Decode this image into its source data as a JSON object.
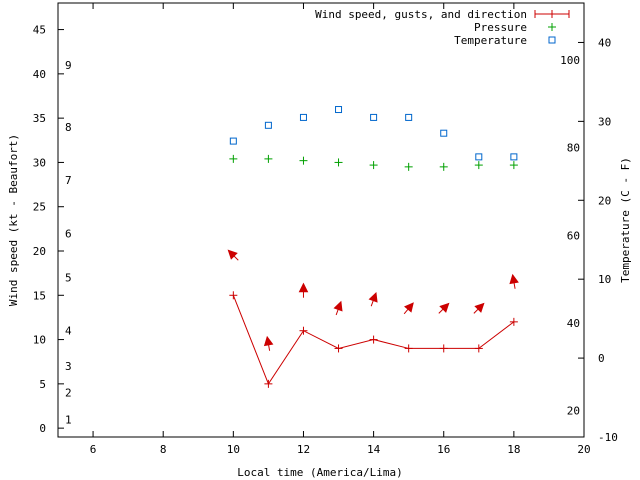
{
  "chart_data": {
    "type": "line",
    "xlabel": "Local time (America/Lima)",
    "ylabel_left": "Wind speed (kt - Beaufort)",
    "ylabel_right": "Temperature (C - F)",
    "xlim": [
      5,
      20
    ],
    "xticks": [
      "6",
      "8",
      "10",
      "12",
      "14",
      "16",
      "18",
      "20"
    ],
    "ylim_left": [
      -1,
      48
    ],
    "yticks_left": [
      "0",
      "5",
      "10",
      "15",
      "20",
      "25",
      "30",
      "35",
      "40",
      "45"
    ],
    "beaufort_labels": [
      {
        "label": "1",
        "knots": 1
      },
      {
        "label": "2",
        "knots": 4
      },
      {
        "label": "3",
        "knots": 7
      },
      {
        "label": "4",
        "knots": 11
      },
      {
        "label": "5",
        "knots": 17
      },
      {
        "label": "6",
        "knots": 22
      },
      {
        "label": "7",
        "knots": 28
      },
      {
        "label": "8",
        "knots": 34
      },
      {
        "label": "9",
        "knots": 41
      }
    ],
    "ylim_right_celsius": [
      -10,
      45
    ],
    "yticks_right_celsius": [
      "-10",
      "0",
      "10",
      "20",
      "30",
      "40"
    ],
    "yticks_right_fahrenheit": [
      "20",
      "40",
      "60",
      "80",
      "100"
    ],
    "legend_position": "top-right",
    "series": [
      {
        "name": "Wind speed, gusts, and direction",
        "color": "#cc0000",
        "axis": "left",
        "x": [
          10,
          11,
          12,
          13,
          14,
          15,
          16,
          17,
          18
        ],
        "y": [
          15,
          5,
          11,
          9,
          10,
          9,
          9,
          9,
          12
        ],
        "direction_deg": [
          135,
          170,
          180,
          200,
          200,
          220,
          225,
          225,
          170
        ]
      },
      {
        "name": "Pressure",
        "color": "#00a000",
        "axis": "left",
        "x": [
          10,
          11,
          12,
          13,
          14,
          15,
          16,
          17,
          18
        ],
        "y": [
          30.4,
          30.4,
          30.2,
          30.0,
          29.7,
          29.5,
          29.5,
          29.7,
          29.7
        ]
      },
      {
        "name": "Temperature",
        "color": "#0066cc",
        "axis": "right",
        "x": [
          10,
          11,
          12,
          13,
          14,
          15,
          16,
          17,
          18
        ],
        "y": [
          27.5,
          29.5,
          30.5,
          31.5,
          30.5,
          30.5,
          28.5,
          25.5,
          25.5
        ]
      }
    ]
  }
}
